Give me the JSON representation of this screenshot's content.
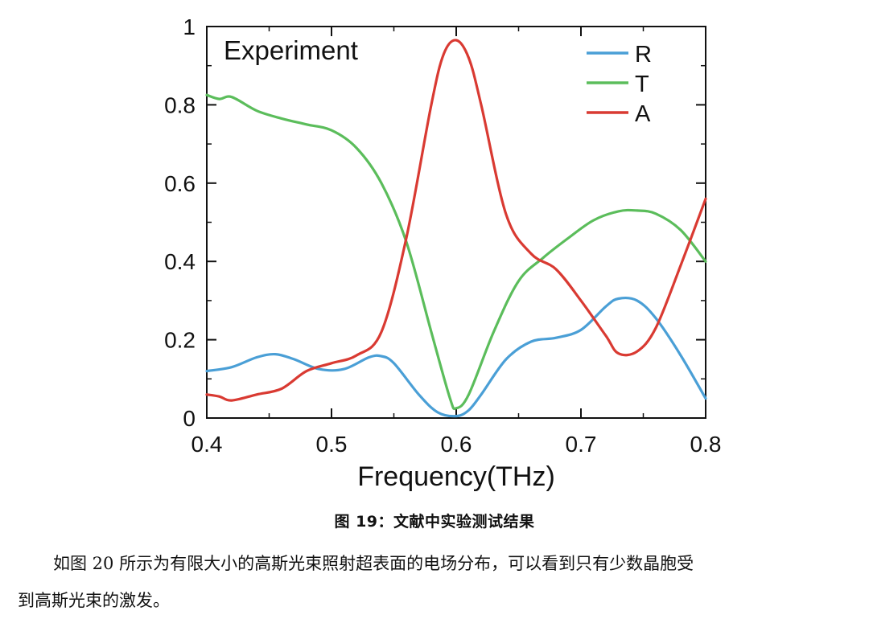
{
  "chart_data": {
    "type": "line",
    "title": "Experiment",
    "xlabel": "Frequency(THz)",
    "ylabel": "",
    "xlim": [
      0.4,
      0.8
    ],
    "ylim": [
      0,
      1
    ],
    "x_ticks": [
      "0.4",
      "0.5",
      "0.6",
      "0.7",
      "0.8"
    ],
    "y_ticks": [
      "0",
      "0.2",
      "0.4",
      "0.6",
      "0.8",
      "1"
    ],
    "grid": false,
    "legend_position": "top-right",
    "series": [
      {
        "name": "R",
        "color": "#4a9fd6",
        "points": [
          [
            0.4,
            0.12
          ],
          [
            0.42,
            0.13
          ],
          [
            0.44,
            0.155
          ],
          [
            0.455,
            0.163
          ],
          [
            0.47,
            0.15
          ],
          [
            0.49,
            0.125
          ],
          [
            0.51,
            0.125
          ],
          [
            0.53,
            0.155
          ],
          [
            0.54,
            0.158
          ],
          [
            0.55,
            0.14
          ],
          [
            0.57,
            0.06
          ],
          [
            0.585,
            0.015
          ],
          [
            0.6,
            0.005
          ],
          [
            0.61,
            0.02
          ],
          [
            0.62,
            0.06
          ],
          [
            0.64,
            0.15
          ],
          [
            0.66,
            0.195
          ],
          [
            0.68,
            0.205
          ],
          [
            0.7,
            0.225
          ],
          [
            0.72,
            0.285
          ],
          [
            0.73,
            0.305
          ],
          [
            0.745,
            0.3
          ],
          [
            0.76,
            0.255
          ],
          [
            0.78,
            0.16
          ],
          [
            0.8,
            0.05
          ]
        ]
      },
      {
        "name": "T",
        "color": "#5bbd5b",
        "points": [
          [
            0.4,
            0.825
          ],
          [
            0.41,
            0.815
          ],
          [
            0.42,
            0.82
          ],
          [
            0.44,
            0.785
          ],
          [
            0.46,
            0.765
          ],
          [
            0.48,
            0.75
          ],
          [
            0.5,
            0.735
          ],
          [
            0.52,
            0.69
          ],
          [
            0.54,
            0.6
          ],
          [
            0.56,
            0.45
          ],
          [
            0.58,
            0.22
          ],
          [
            0.595,
            0.05
          ],
          [
            0.6,
            0.025
          ],
          [
            0.61,
            0.06
          ],
          [
            0.63,
            0.22
          ],
          [
            0.65,
            0.35
          ],
          [
            0.67,
            0.41
          ],
          [
            0.69,
            0.46
          ],
          [
            0.71,
            0.505
          ],
          [
            0.73,
            0.528
          ],
          [
            0.745,
            0.53
          ],
          [
            0.76,
            0.522
          ],
          [
            0.78,
            0.48
          ],
          [
            0.8,
            0.4
          ]
        ]
      },
      {
        "name": "A",
        "color": "#d93a32",
        "points": [
          [
            0.4,
            0.06
          ],
          [
            0.41,
            0.055
          ],
          [
            0.42,
            0.045
          ],
          [
            0.44,
            0.06
          ],
          [
            0.46,
            0.075
          ],
          [
            0.48,
            0.12
          ],
          [
            0.5,
            0.14
          ],
          [
            0.52,
            0.16
          ],
          [
            0.54,
            0.22
          ],
          [
            0.56,
            0.46
          ],
          [
            0.58,
            0.8
          ],
          [
            0.59,
            0.93
          ],
          [
            0.6,
            0.965
          ],
          [
            0.61,
            0.92
          ],
          [
            0.62,
            0.8
          ],
          [
            0.64,
            0.52
          ],
          [
            0.66,
            0.42
          ],
          [
            0.68,
            0.38
          ],
          [
            0.7,
            0.3
          ],
          [
            0.72,
            0.21
          ],
          [
            0.73,
            0.165
          ],
          [
            0.745,
            0.17
          ],
          [
            0.76,
            0.23
          ],
          [
            0.78,
            0.39
          ],
          [
            0.8,
            0.56
          ]
        ]
      }
    ]
  },
  "document": {
    "caption": "图 19：文献中实验测试结果",
    "paragraph_line1": "如图 20 所示为有限大小的高斯光束照射超表面的电场分布，可以看到只有少数晶胞受",
    "paragraph_line2": "到高斯光束的激发。"
  }
}
